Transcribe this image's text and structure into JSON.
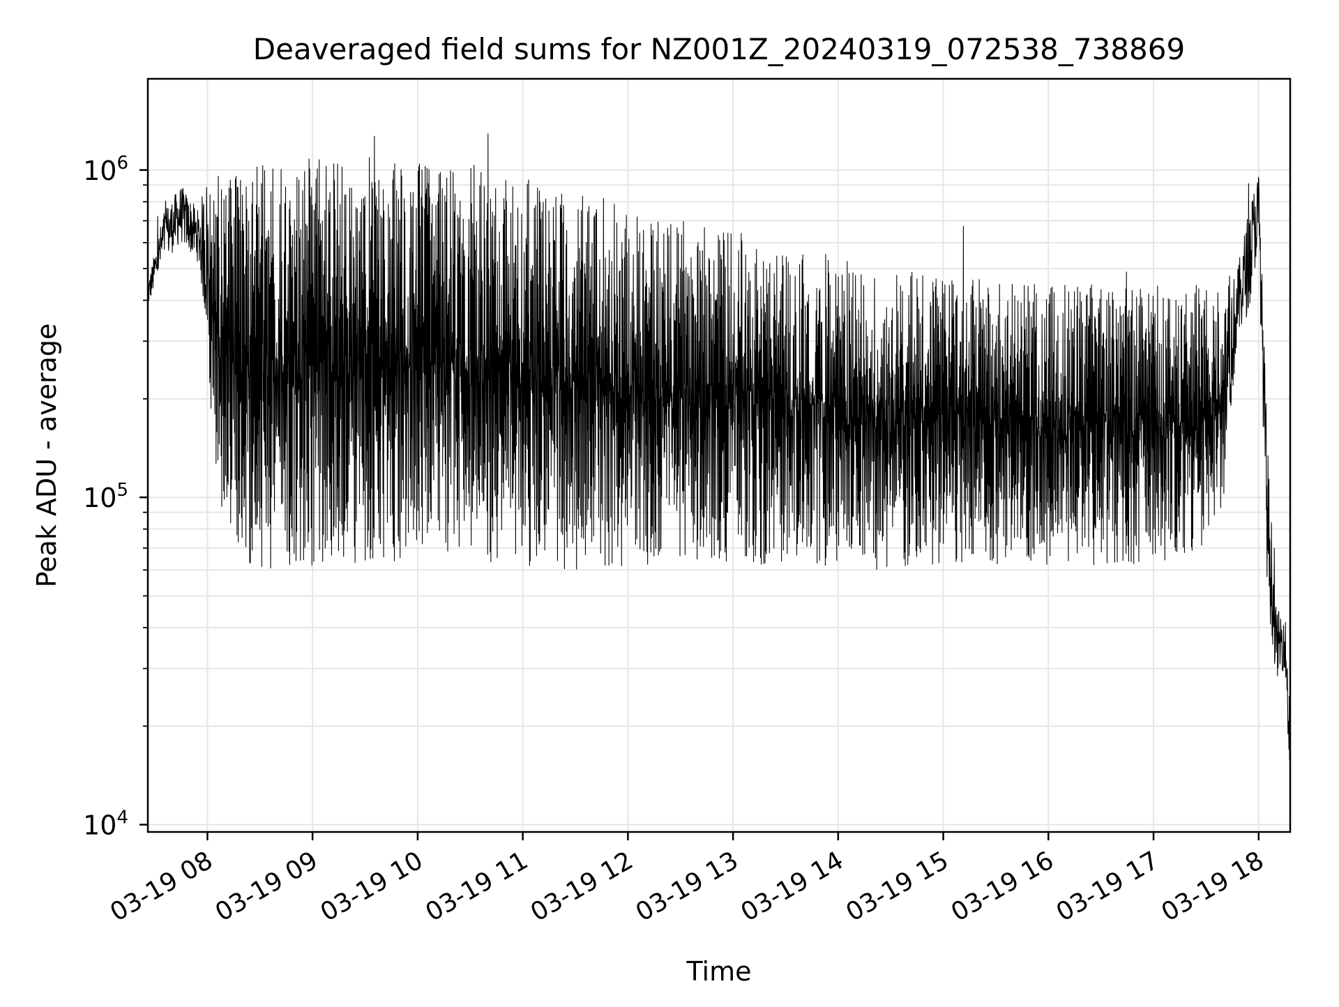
{
  "chart_data": {
    "type": "line",
    "title": "Deaveraged field sums for NZ001Z_20240319_072538_738869",
    "xlabel": "Time",
    "ylabel": "Peak ADU - average",
    "yscale": "log",
    "ylim": [
      9500,
      1900000
    ],
    "xlim": [
      "2024-03-19 07:26",
      "2024-03-19 18:18"
    ],
    "grid": true,
    "xticks": [
      {
        "x": "2024-03-19 08:00",
        "label": "03-19 08"
      },
      {
        "x": "2024-03-19 09:00",
        "label": "03-19 09"
      },
      {
        "x": "2024-03-19 10:00",
        "label": "03-19 10"
      },
      {
        "x": "2024-03-19 11:00",
        "label": "03-19 11"
      },
      {
        "x": "2024-03-19 12:00",
        "label": "03-19 12"
      },
      {
        "x": "2024-03-19 13:00",
        "label": "03-19 13"
      },
      {
        "x": "2024-03-19 14:00",
        "label": "03-19 14"
      },
      {
        "x": "2024-03-19 15:00",
        "label": "03-19 15"
      },
      {
        "x": "2024-03-19 16:00",
        "label": "03-19 16"
      },
      {
        "x": "2024-03-19 17:00",
        "label": "03-19 17"
      },
      {
        "x": "2024-03-19 18:00",
        "label": "03-19 18"
      }
    ],
    "yticks": [
      {
        "value": 10000,
        "base": "10",
        "exp": "4"
      },
      {
        "value": 100000,
        "base": "10",
        "exp": "5"
      },
      {
        "value": 1000000,
        "base": "10",
        "exp": "6"
      }
    ],
    "line_color": "#000000",
    "envelope_x": [
      "2024-03-19 07:26",
      "2024-03-19 07:35",
      "2024-03-19 07:45",
      "2024-03-19 07:55",
      "2024-03-19 08:00",
      "2024-03-19 08:04",
      "2024-03-19 08:15",
      "2024-03-19 08:30",
      "2024-03-19 08:45",
      "2024-03-19 09:00",
      "2024-03-19 09:30",
      "2024-03-19 10:00",
      "2024-03-19 10:30",
      "2024-03-19 11:00",
      "2024-03-19 11:30",
      "2024-03-19 12:00",
      "2024-03-19 12:30",
      "2024-03-19 13:00",
      "2024-03-19 13:30",
      "2024-03-19 14:00",
      "2024-03-19 14:30",
      "2024-03-19 15:00",
      "2024-03-19 15:30",
      "2024-03-19 16:00",
      "2024-03-19 16:30",
      "2024-03-19 17:00",
      "2024-03-19 17:30",
      "2024-03-19 17:40",
      "2024-03-19 17:48",
      "2024-03-19 17:55",
      "2024-03-19 18:00",
      "2024-03-19 18:05",
      "2024-03-19 18:10",
      "2024-03-19 18:15",
      "2024-03-19 18:18"
    ],
    "envelope_low": [
      380000,
      520000,
      600000,
      520000,
      300000,
      100000,
      65000,
      60000,
      60000,
      62000,
      62000,
      65000,
      62000,
      62000,
      60000,
      62000,
      62000,
      62000,
      62000,
      60000,
      60000,
      62000,
      62000,
      62000,
      62000,
      62000,
      62000,
      100000,
      300000,
      380000,
      600000,
      50000,
      28000,
      30000,
      12000
    ],
    "envelope_high": [
      450000,
      750000,
      900000,
      750000,
      1000000,
      1000000,
      1050000,
      1100000,
      1100000,
      1100000,
      1100000,
      1050000,
      1050000,
      950000,
      850000,
      800000,
      700000,
      650000,
      600000,
      550000,
      500000,
      480000,
      460000,
      450000,
      450000,
      450000,
      450000,
      420000,
      500000,
      800000,
      1000000,
      150000,
      45000,
      45000,
      25000
    ]
  }
}
